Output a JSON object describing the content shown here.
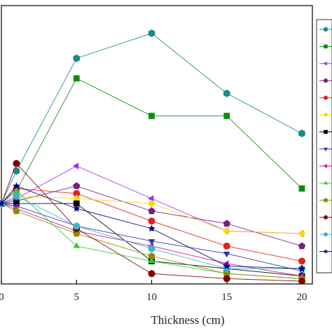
{
  "chart_data": {
    "type": "line",
    "title": "",
    "xlabel": "Thickness (cm)",
    "ylabel": "",
    "xlim": [
      0,
      21
    ],
    "ylim": [
      0,
      100
    ],
    "x_ticks": [
      0,
      5,
      10,
      15,
      20
    ],
    "x_tick_labels": [
      "0",
      "5",
      "10",
      "15",
      "20"
    ],
    "grid": false,
    "legend_position": "right",
    "x": [
      0,
      1,
      5,
      10,
      15,
      20
    ],
    "series": [
      {
        "color": "#1a8a8a",
        "marker": "hexagon",
        "values": [
          31,
          44,
          89,
          99,
          75,
          59
        ]
      },
      {
        "color": "#128a12",
        "marker": "square",
        "values": [
          31,
          36,
          81,
          66,
          66,
          37
        ]
      },
      {
        "color": "#9b30ff",
        "marker": "triangle-left",
        "values": [
          31,
          33,
          46,
          33,
          20,
          19
        ]
      },
      {
        "color": "#7b1f7b",
        "marker": "pentagon",
        "values": [
          31,
          32,
          38,
          28,
          23,
          14
        ]
      },
      {
        "color": "#e02020",
        "marker": "circle",
        "values": [
          31,
          37,
          35,
          24,
          14,
          8
        ]
      },
      {
        "color": "#ffd700",
        "marker": "diamond",
        "values": [
          31,
          34,
          33,
          31,
          20,
          19
        ]
      },
      {
        "color": "#000000",
        "marker": "square",
        "values": [
          31,
          31,
          31,
          8,
          5,
          2
        ]
      },
      {
        "color": "#2e2eb8",
        "marker": "triangle-down",
        "values": [
          31,
          30,
          22,
          16,
          11,
          4
        ]
      },
      {
        "color": "#c71585",
        "marker": "triangle-left",
        "values": [
          31,
          29,
          20,
          14,
          7,
          2
        ]
      },
      {
        "color": "#32cd32",
        "marker": "triangle-up",
        "values": [
          31,
          36,
          14,
          8,
          3,
          1
        ]
      },
      {
        "color": "#8b8b00",
        "marker": "pentagon",
        "values": [
          31,
          28,
          19,
          10,
          3,
          1
        ]
      },
      {
        "color": "#800000",
        "marker": "circle",
        "values": [
          31,
          47,
          21,
          3,
          1,
          0
        ]
      },
      {
        "color": "#3cb4c8",
        "marker": "circle",
        "values": [
          31,
          34,
          22,
          13,
          5,
          5
        ]
      },
      {
        "color": "#00008b",
        "marker": "star",
        "values": [
          31,
          38,
          29,
          21,
          6,
          5
        ]
      }
    ]
  }
}
